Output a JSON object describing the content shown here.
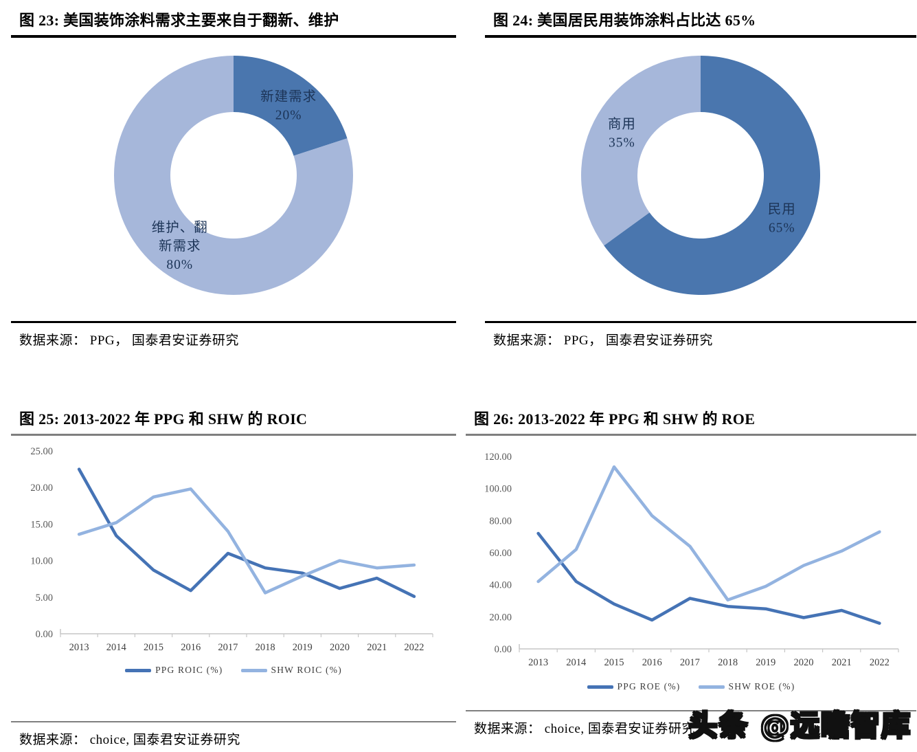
{
  "panels": [
    {
      "figure": "图 23",
      "title": "图 23: 美国装饰涂料需求主要来自于翻新、维护",
      "source": "数据来源： PPG， 国泰君安证券研究"
    },
    {
      "figure": "图 24",
      "title": "图 24: 美国居民用装饰涂料占比达 65%",
      "source": "数据来源： PPG， 国泰君安证券研究"
    },
    {
      "figure": "图 25",
      "title": "图 25:  2013-2022 年 PPG 和 SHW 的 ROIC",
      "source": "数据来源： choice, 国泰君安证券研究"
    },
    {
      "figure": "图 26",
      "title": "图 26:  2013-2022 年 PPG 和 SHW 的 ROE",
      "source": "数据来源： choice, 国泰君安证券研究"
    }
  ],
  "watermark": {
    "text": "头条 @远瞻智库"
  },
  "colors": {
    "donut_dark": "#4a76ae",
    "donut_light": "#a6b7da",
    "ppg_line": "#4573b5",
    "shw_line": "#93b3e0",
    "donut_label_text": "#1c3457",
    "axis_line": "#c6c6c6",
    "title_rule_top": "#000000",
    "title_rule_bottom": "#7f7f7f"
  },
  "chart_data": [
    {
      "type": "pie",
      "donut": true,
      "title": "图 23: 美国装饰涂料需求主要来自于翻新、维护",
      "labels": [
        "新建需求",
        "维护、翻新需求"
      ],
      "values": [
        20,
        80
      ],
      "colors": [
        "#4a76ae",
        "#a6b7da"
      ],
      "start_angle_deg": -90,
      "direction": "clockwise",
      "annotations": [
        {
          "lines": [
            "新建需求",
            "20%"
          ],
          "x": 0.72,
          "y": 0.22
        },
        {
          "lines": [
            "维护、翻",
            "新需求",
            "80%"
          ],
          "x": 0.285,
          "y": 0.78
        }
      ],
      "source": "数据来源： PPG， 国泰君安证券研究"
    },
    {
      "type": "pie",
      "donut": true,
      "title": "图 24: 美国居民用装饰涂料占比达 65%",
      "labels": [
        "民用",
        "商用"
      ],
      "values": [
        65,
        35
      ],
      "colors": [
        "#4a76ae",
        "#a6b7da"
      ],
      "start_angle_deg": -90,
      "direction": "clockwise",
      "annotations": [
        {
          "lines": [
            "民用",
            "65%"
          ],
          "x": 0.825,
          "y": 0.67
        },
        {
          "lines": [
            "商用",
            "35%"
          ],
          "x": 0.185,
          "y": 0.33
        }
      ],
      "source": "数据来源： PPG， 国泰君安证券研究"
    },
    {
      "type": "line",
      "title": "图 25:  2013-2022 年 PPG 和 SHW 的 ROIC",
      "x": [
        2013,
        2014,
        2015,
        2016,
        2017,
        2018,
        2019,
        2020,
        2021,
        2022
      ],
      "series": [
        {
          "name": "PPG ROIC (%)",
          "color": "#4573b5",
          "values": [
            22.5,
            13.4,
            8.7,
            5.9,
            11.0,
            9.0,
            8.3,
            6.2,
            7.6,
            5.1
          ]
        },
        {
          "name": "SHW ROIC (%)",
          "color": "#93b3e0",
          "values": [
            13.6,
            15.2,
            18.7,
            19.8,
            14.0,
            5.6,
            7.9,
            10.0,
            9.0,
            9.4
          ]
        }
      ],
      "ylim": [
        0,
        25
      ],
      "ytick_step": 5,
      "ytick_decimals": 2,
      "grid": false,
      "legend_position": "bottom",
      "source": "数据来源： choice, 国泰君安证券研究"
    },
    {
      "type": "line",
      "title": "图 26:  2013-2022 年 PPG 和 SHW 的 ROE",
      "x": [
        2013,
        2014,
        2015,
        2016,
        2017,
        2018,
        2019,
        2020,
        2021,
        2022
      ],
      "series": [
        {
          "name": "PPG ROE (%)",
          "color": "#4573b5",
          "values": [
            72,
            42,
            28,
            18,
            31.5,
            26.5,
            25,
            19.5,
            24,
            16
          ]
        },
        {
          "name": "SHW ROE (%)",
          "color": "#93b3e0",
          "values": [
            42,
            62,
            113.5,
            83,
            64,
            30.5,
            39,
            52,
            61,
            73
          ]
        }
      ],
      "ylim": [
        0,
        120
      ],
      "ytick_step": 20,
      "ytick_decimals": 2,
      "grid": false,
      "legend_position": "bottom",
      "source": "数据来源： choice, 国泰君安证券研究"
    }
  ]
}
